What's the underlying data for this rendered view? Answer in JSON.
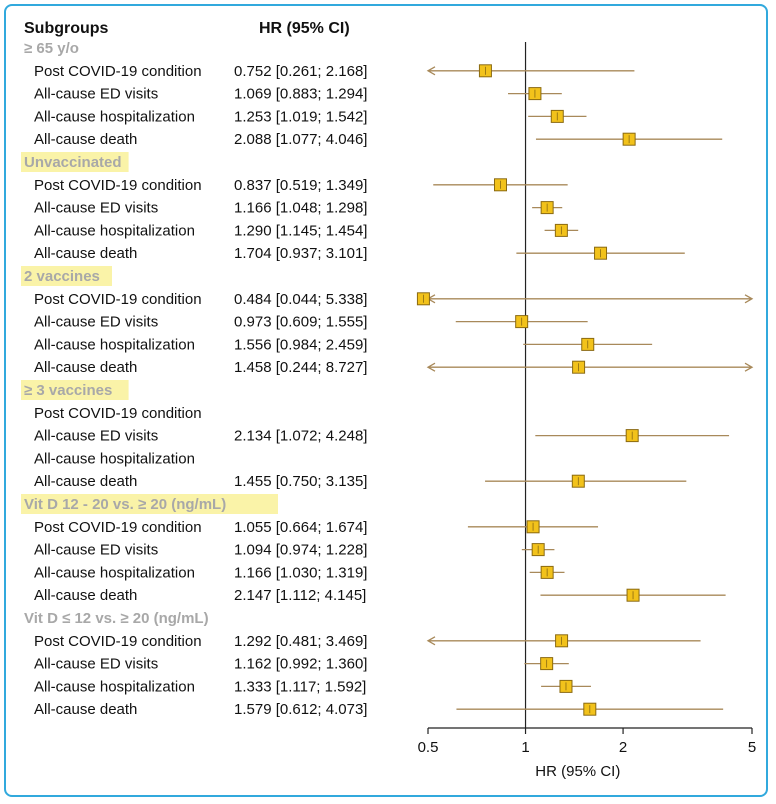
{
  "chart_data": {
    "type": "forest",
    "header": {
      "subgroups": "Subgroups",
      "hr": "HR (95% CI)"
    },
    "xlabel": "HR (95% CI)",
    "xscale": "log",
    "xlim": [
      0.5,
      5
    ],
    "reference_line": 1,
    "ticks": [
      {
        "v": 0.5,
        "label": "0.5"
      },
      {
        "v": 1,
        "label": "1"
      },
      {
        "v": 2,
        "label": "2"
      },
      {
        "v": 5,
        "label": "5"
      }
    ],
    "groups": [
      {
        "name": "≥ 65 y/o",
        "highlight": false,
        "rows": [
          {
            "label": "Post COVID-19 condition",
            "hr": 0.752,
            "lo": 0.261,
            "hi": 2.168,
            "text": "0.752 [0.261; 2.168]"
          },
          {
            "label": "All-cause ED visits",
            "hr": 1.069,
            "lo": 0.883,
            "hi": 1.294,
            "text": "1.069 [0.883; 1.294]"
          },
          {
            "label": "All-cause hospitalization",
            "hr": 1.253,
            "lo": 1.019,
            "hi": 1.542,
            "text": "1.253 [1.019; 1.542]"
          },
          {
            "label": "All-cause death",
            "hr": 2.088,
            "lo": 1.077,
            "hi": 4.046,
            "text": "2.088 [1.077; 4.046]"
          }
        ]
      },
      {
        "name": "Unvaccinated",
        "highlight": true,
        "rows": [
          {
            "label": "Post COVID-19 condition",
            "hr": 0.837,
            "lo": 0.519,
            "hi": 1.349,
            "text": "0.837 [0.519; 1.349]"
          },
          {
            "label": "All-cause ED visits",
            "hr": 1.166,
            "lo": 1.048,
            "hi": 1.298,
            "text": "1.166 [1.048; 1.298]"
          },
          {
            "label": "All-cause hospitalization",
            "hr": 1.29,
            "lo": 1.145,
            "hi": 1.454,
            "text": "1.290 [1.145; 1.454]"
          },
          {
            "label": "All-cause death",
            "hr": 1.704,
            "lo": 0.937,
            "hi": 3.101,
            "text": "1.704 [0.937; 3.101]"
          }
        ]
      },
      {
        "name": "2 vaccines",
        "highlight": true,
        "rows": [
          {
            "label": "Post COVID-19 condition",
            "hr": 0.484,
            "lo": 0.044,
            "hi": 5.338,
            "text": "0.484 [0.044; 5.338]"
          },
          {
            "label": "All-cause ED visits",
            "hr": 0.973,
            "lo": 0.609,
            "hi": 1.555,
            "text": "0.973 [0.609; 1.555]"
          },
          {
            "label": "All-cause hospitalization",
            "hr": 1.556,
            "lo": 0.984,
            "hi": 2.459,
            "text": "1.556 [0.984; 2.459]"
          },
          {
            "label": "All-cause death",
            "hr": 1.458,
            "lo": 0.244,
            "hi": 8.727,
            "text": "1.458 [0.244; 8.727]"
          }
        ]
      },
      {
        "name": "≥ 3 vaccines",
        "highlight": true,
        "rows": [
          {
            "label": "Post COVID-19 condition",
            "hr": null,
            "lo": null,
            "hi": null,
            "text": ""
          },
          {
            "label": "All-cause ED visits",
            "hr": 2.134,
            "lo": 1.072,
            "hi": 4.248,
            "text": "2.134 [1.072; 4.248]"
          },
          {
            "label": "All-cause hospitalization",
            "hr": null,
            "lo": null,
            "hi": null,
            "text": ""
          },
          {
            "label": "All-cause death",
            "hr": 1.455,
            "lo": 0.75,
            "hi": 3.135,
            "text": "1.455 [0.750; 3.135]"
          }
        ]
      },
      {
        "name": "Vit D 12 - 20 vs. ≥ 20 (ng/mL)",
        "highlight": true,
        "rows": [
          {
            "label": "Post COVID-19 condition",
            "hr": 1.055,
            "lo": 0.664,
            "hi": 1.674,
            "text": "1.055 [0.664; 1.674]"
          },
          {
            "label": "All-cause ED visits",
            "hr": 1.094,
            "lo": 0.974,
            "hi": 1.228,
            "text": "1.094 [0.974; 1.228]"
          },
          {
            "label": "All-cause hospitalization",
            "hr": 1.166,
            "lo": 1.03,
            "hi": 1.319,
            "text": "1.166 [1.030; 1.319]"
          },
          {
            "label": "All-cause death",
            "hr": 2.147,
            "lo": 1.112,
            "hi": 4.145,
            "text": "2.147 [1.112; 4.145]"
          }
        ]
      },
      {
        "name": "Vit D ≤ 12 vs. ≥ 20 (ng/mL)",
        "highlight": false,
        "rows": [
          {
            "label": "Post COVID-19 condition",
            "hr": 1.292,
            "lo": 0.481,
            "hi": 3.469,
            "text": "1.292 [0.481; 3.469]"
          },
          {
            "label": "All-cause ED visits",
            "hr": 1.162,
            "lo": 0.992,
            "hi": 1.36,
            "text": "1.162 [0.992; 1.360]"
          },
          {
            "label": "All-cause hospitalization",
            "hr": 1.333,
            "lo": 1.117,
            "hi": 1.592,
            "text": "1.333 [1.117; 1.592]"
          },
          {
            "label": "All-cause death",
            "hr": 1.579,
            "lo": 0.612,
            "hi": 4.073,
            "text": "1.579 [0.612; 4.073]"
          }
        ]
      }
    ],
    "colors": {
      "border": "#31a9dd",
      "ci_line": "#a8895a",
      "marker_fill": "#f2c21b",
      "marker_stroke": "#8a6a12",
      "highlight": "#faf3a8",
      "group_text": "#a8a8a8",
      "axis": "#222222"
    }
  }
}
